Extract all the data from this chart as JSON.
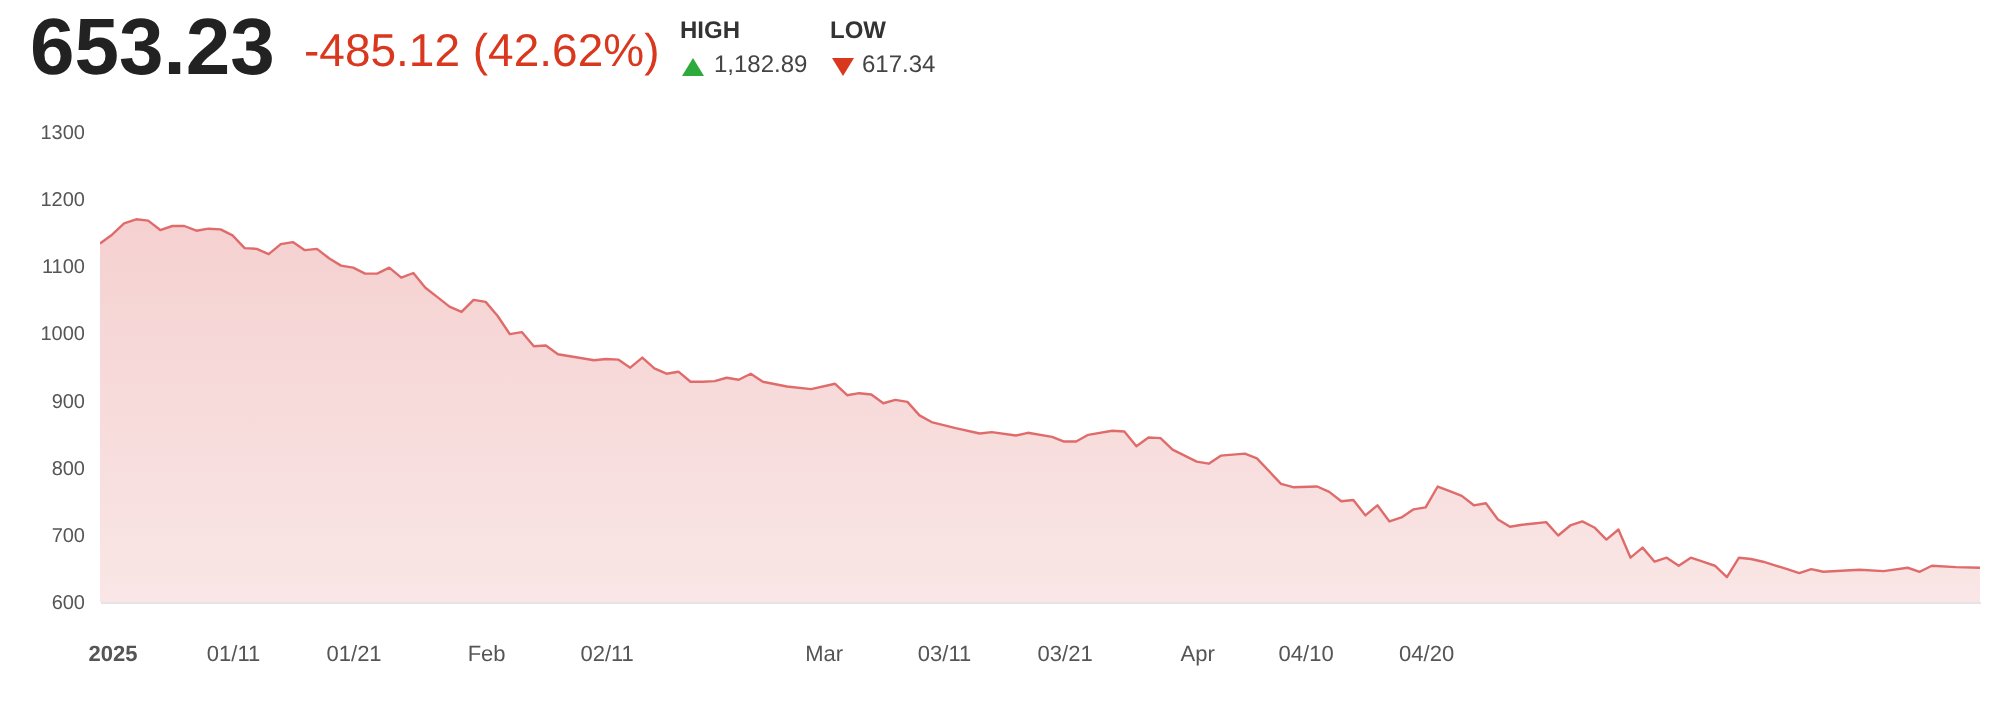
{
  "chart_data": {
    "type": "area",
    "title": "653.23",
    "subtitle": "-485.12 (42.62%)",
    "annotations": [
      "HIGH",
      "1,182.89",
      "LOW",
      "617.34"
    ],
    "x": [
      "2024-12-31",
      "2025-01-01",
      "2025-01-02",
      "2025-01-03",
      "2025-01-04",
      "2025-01-05",
      "2025-01-06",
      "2025-01-07",
      "2025-01-08",
      "2025-01-09",
      "2025-01-10",
      "2025-01-11",
      "2025-01-12",
      "2025-01-13",
      "2025-01-14",
      "2025-01-15",
      "2025-01-16",
      "2025-01-17",
      "2025-01-18",
      "2025-01-19",
      "2025-01-20",
      "2025-01-21",
      "2025-01-22",
      "2025-01-23",
      "2025-01-24",
      "2025-01-25",
      "2025-01-26",
      "2025-01-27",
      "2025-01-28",
      "2025-01-29",
      "2025-01-30",
      "2025-01-31",
      "2025-02-01",
      "2025-02-02",
      "2025-02-03",
      "2025-02-04",
      "2025-02-05",
      "2025-02-06",
      "2025-02-07",
      "2025-02-09",
      "2025-02-10",
      "2025-02-11",
      "2025-02-12",
      "2025-02-13",
      "2025-02-14",
      "2025-02-15",
      "2025-02-16",
      "2025-02-17",
      "2025-02-18",
      "2025-02-19",
      "2025-02-20",
      "2025-02-21",
      "2025-02-22",
      "2025-02-23",
      "2025-02-24",
      "2025-02-26",
      "2025-02-28",
      "2025-03-02",
      "2025-03-03",
      "2025-03-04",
      "2025-03-05",
      "2025-03-06",
      "2025-03-07",
      "2025-03-08",
      "2025-03-09",
      "2025-03-10",
      "2025-03-12",
      "2025-03-14",
      "2025-03-15",
      "2025-03-17",
      "2025-03-18",
      "2025-03-20",
      "2025-03-21",
      "2025-03-22",
      "2025-03-23",
      "2025-03-25",
      "2025-03-26",
      "2025-03-27",
      "2025-03-28",
      "2025-03-29",
      "2025-03-30",
      "2025-03-31",
      "2025-04-01",
      "2025-04-02",
      "2025-04-03",
      "2025-04-05",
      "2025-04-06",
      "2025-04-08",
      "2025-04-09",
      "2025-04-11",
      "2025-04-12",
      "2025-04-13",
      "2025-04-14",
      "2025-04-15",
      "2025-04-16",
      "2025-04-17",
      "2025-04-18",
      "2025-04-19",
      "2025-04-20",
      "2025-04-21",
      "2025-04-22",
      "2025-04-23",
      "2025-04-24",
      "2025-04-25",
      "2025-04-26",
      "2025-04-27",
      "2025-04-28",
      "2025-04-29",
      "2025-04-30",
      "2025-05-01",
      "2025-05-02",
      "2025-05-03",
      "2025-05-04",
      "2025-05-05",
      "2025-05-06",
      "2025-05-07",
      "2025-05-08",
      "2025-05-09",
      "2025-05-10",
      "2025-05-11",
      "2025-05-12",
      "2025-05-13",
      "2025-05-14",
      "2025-05-15",
      "2025-05-16",
      "2025-05-17",
      "2025-05-18",
      "2025-05-20",
      "2025-05-21",
      "2025-05-22",
      "2025-05-23",
      "2025-05-26",
      "2025-05-28",
      "2025-05-30",
      "2025-05-31",
      "2025-06-01",
      "2025-06-03",
      "2025-06-05"
    ],
    "series": [
      {
        "color": "#e06b6b",
        "values": [
          1134,
          1147,
          1164,
          1170,
          1168,
          1154,
          1160,
          1160,
          1153,
          1156,
          1155,
          1146,
          1127,
          1126,
          1118,
          1133,
          1136,
          1124,
          1126,
          1112,
          1101,
          1098,
          1089,
          1089,
          1098,
          1083,
          1090,
          1068,
          1054,
          1040,
          1032,
          1050,
          1047,
          1026,
          999,
          1002,
          981,
          982,
          969,
          963,
          960,
          962,
          961,
          949,
          964,
          948,
          940,
          943,
          928,
          928,
          929,
          934,
          931,
          940,
          928,
          921,
          917,
          925,
          908,
          911,
          909,
          896,
          901,
          898,
          878,
          868,
          859,
          851,
          853,
          848,
          852,
          846,
          839,
          839,
          849,
          855,
          854,
          832,
          845,
          844,
          827,
          818,
          809,
          806,
          818,
          821,
          814,
          776,
          771,
          772,
          764,
          750,
          752,
          729,
          744,
          720,
          726,
          738,
          741,
          772,
          765,
          758,
          744,
          747,
          723,
          712,
          715,
          717,
          719,
          699,
          714,
          720,
          711,
          693,
          708,
          666,
          681,
          660,
          666,
          654,
          666,
          660,
          654,
          637,
          666,
          664,
          660,
          649,
          643,
          649,
          645,
          648,
          646,
          651,
          645,
          654,
          652,
          651
        ]
      }
    ],
    "xlim": [
      "2024-12-31",
      "2025-06-05"
    ],
    "xticks": [
      {
        "value": "2025-01-01",
        "label": "2025"
      },
      {
        "value": "2025-01-11",
        "label": "01/11"
      },
      {
        "value": "2025-01-21",
        "label": "01/21"
      },
      {
        "value": "2025-02-01",
        "label": "Feb"
      },
      {
        "value": "2025-02-11",
        "label": "02/11"
      },
      {
        "value": "2025-03-01",
        "label": "Mar"
      },
      {
        "value": "2025-03-11",
        "label": "03/11"
      },
      {
        "value": "2025-03-21",
        "label": "03/21"
      },
      {
        "value": "2025-04-01",
        "label": "Apr"
      },
      {
        "value": "2025-04-10",
        "label": "04/10"
      },
      {
        "value": "2025-04-20",
        "label": "04/20"
      }
    ],
    "ylim": [
      600,
      1300
    ],
    "yticks": [
      600,
      700,
      800,
      900,
      1000,
      1100,
      1200,
      1300
    ]
  }
}
